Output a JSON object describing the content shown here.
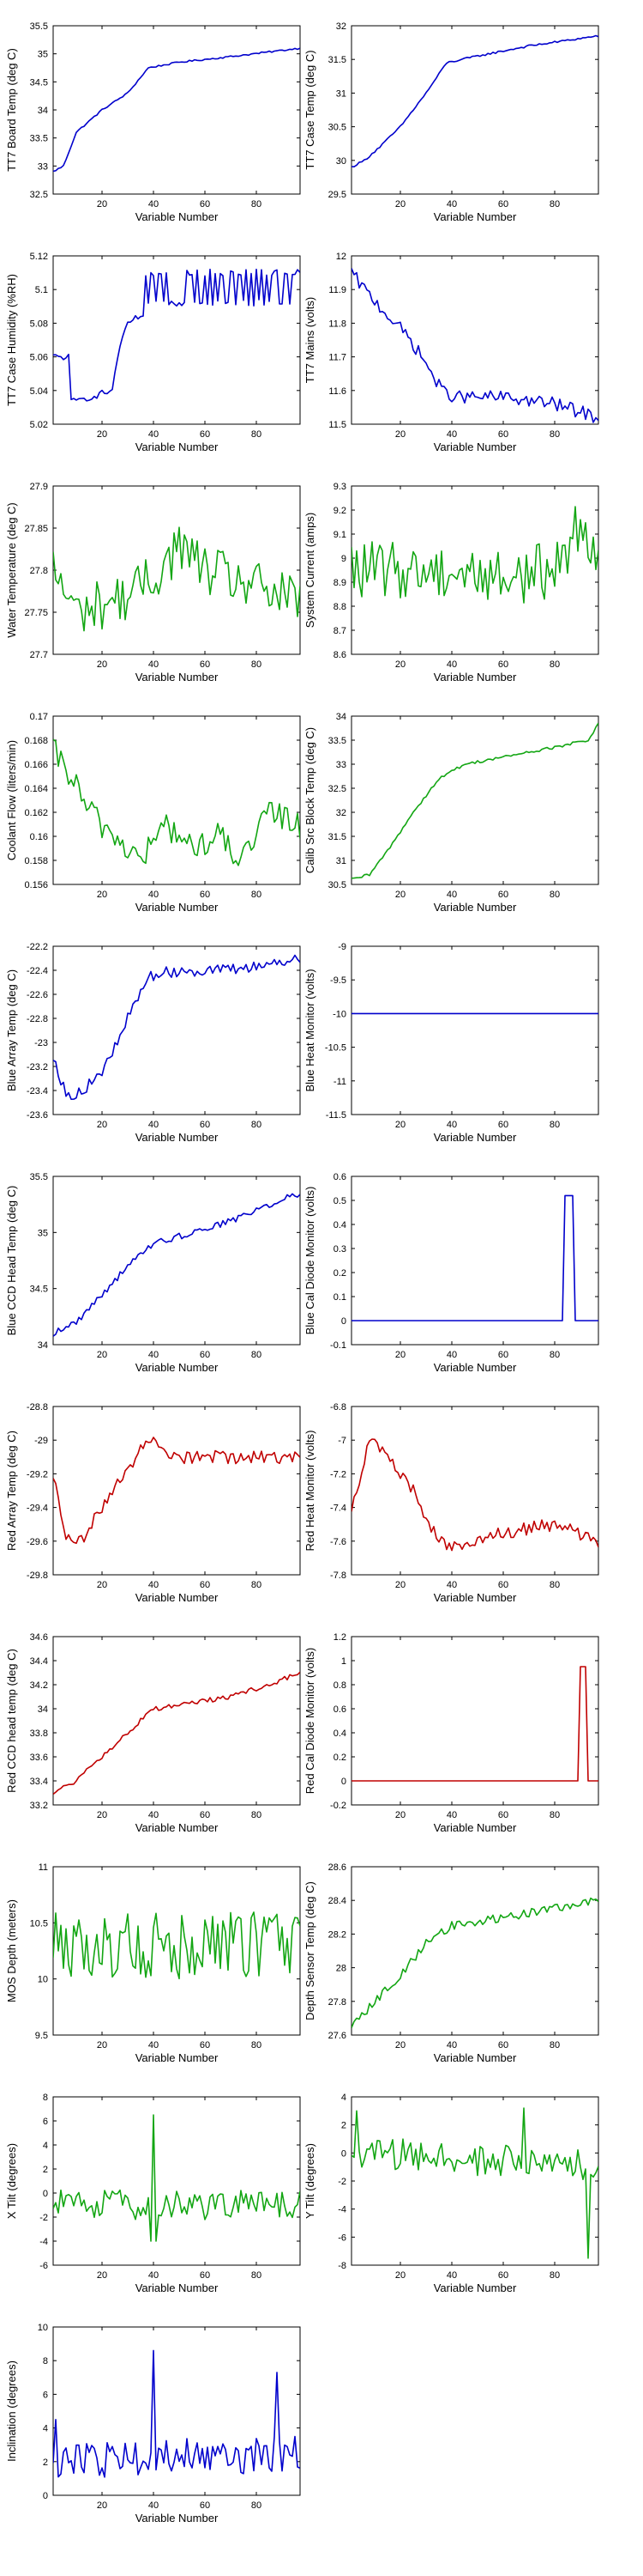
{
  "colors": {
    "blue": "#0000cc",
    "green": "#13a613",
    "red": "#c00000"
  },
  "chart_data": [
    {
      "type": "line",
      "xlabel": "Variable Number",
      "ylabel": "TT7 Board Temp (deg C)",
      "xlim": [
        1,
        97
      ],
      "ylim": [
        32.5,
        35.5
      ],
      "yticks": [
        "32.5",
        "33",
        "33.5",
        "34",
        "34.5",
        "35",
        "35.5"
      ],
      "color": "blue",
      "anchors": [
        [
          1,
          32.9
        ],
        [
          5,
          33.0
        ],
        [
          10,
          33.6
        ],
        [
          20,
          34.0
        ],
        [
          30,
          34.3
        ],
        [
          38,
          34.75
        ],
        [
          50,
          34.85
        ],
        [
          70,
          34.95
        ],
        [
          97,
          35.1
        ]
      ],
      "noise": 0.015
    },
    {
      "type": "line",
      "xlabel": "Variable Number",
      "ylabel": "TT7 Case Temp (deg C)",
      "xlim": [
        1,
        97
      ],
      "ylim": [
        29.5,
        32
      ],
      "yticks": [
        "29.5",
        "30",
        "30.5",
        "31",
        "31.5",
        "32"
      ],
      "color": "blue",
      "anchors": [
        [
          1,
          29.9
        ],
        [
          6,
          30.0
        ],
        [
          12,
          30.2
        ],
        [
          20,
          30.5
        ],
        [
          30,
          31.0
        ],
        [
          38,
          31.45
        ],
        [
          50,
          31.55
        ],
        [
          70,
          31.7
        ],
        [
          97,
          31.85
        ]
      ],
      "noise": 0.015
    },
    {
      "type": "line",
      "xlabel": "Variable Number",
      "ylabel": "TT7 Case Humidity (%RH)",
      "xlim": [
        1,
        97
      ],
      "ylim": [
        5.02,
        5.12
      ],
      "yticks": [
        "5.02",
        "5.04",
        "5.06",
        "5.08",
        "5.1",
        "5.12"
      ],
      "color": "blue",
      "anchors": [
        [
          1,
          5.06
        ],
        [
          7,
          5.06
        ],
        [
          8,
          5.033
        ],
        [
          15,
          5.036
        ],
        [
          24,
          5.04
        ],
        [
          26,
          5.06
        ],
        [
          30,
          5.08
        ],
        [
          36,
          5.085
        ],
        [
          37,
          5.1
        ],
        [
          97,
          5.1
        ]
      ],
      "noise": 0.002,
      "flicker": [
        37,
        97,
        5.09,
        5.112
      ]
    },
    {
      "type": "line",
      "xlabel": "Variable Number",
      "ylabel": "TT7 Mains  (volts)",
      "xlim": [
        1,
        97
      ],
      "ylim": [
        11.5,
        12
      ],
      "yticks": [
        "11.5",
        "11.6",
        "11.7",
        "11.8",
        "11.9",
        "12"
      ],
      "color": "blue",
      "anchors": [
        [
          1,
          11.95
        ],
        [
          6,
          11.9
        ],
        [
          12,
          11.85
        ],
        [
          18,
          11.8
        ],
        [
          24,
          11.75
        ],
        [
          30,
          11.68
        ],
        [
          36,
          11.6
        ],
        [
          42,
          11.58
        ],
        [
          60,
          11.58
        ],
        [
          80,
          11.56
        ],
        [
          97,
          11.52
        ]
      ],
      "noise": 0.02
    },
    {
      "type": "line",
      "xlabel": "Variable Number",
      "ylabel": "Water Temperature (deg C)",
      "xlim": [
        1,
        97
      ],
      "ylim": [
        27.7,
        27.9
      ],
      "yticks": [
        "27.7",
        "27.75",
        "27.8",
        "27.85",
        "27.9"
      ],
      "color": "green",
      "anchors": [
        [
          1,
          27.8
        ],
        [
          10,
          27.75
        ],
        [
          20,
          27.76
        ],
        [
          30,
          27.77
        ],
        [
          40,
          27.79
        ],
        [
          50,
          27.83
        ],
        [
          60,
          27.8
        ],
        [
          70,
          27.79
        ],
        [
          80,
          27.78
        ],
        [
          97,
          27.76
        ]
      ],
      "noise": 0.03
    },
    {
      "type": "line",
      "xlabel": "Variable Number",
      "ylabel": "System Current (amps)",
      "xlim": [
        1,
        97
      ],
      "ylim": [
        8.6,
        9.3
      ],
      "yticks": [
        "8.6",
        "8.7",
        "8.8",
        "8.9",
        "9",
        "9.1",
        "9.2",
        "9.3"
      ],
      "color": "green",
      "anchors": [
        [
          1,
          8.95
        ],
        [
          20,
          8.95
        ],
        [
          40,
          8.95
        ],
        [
          60,
          8.92
        ],
        [
          80,
          8.95
        ],
        [
          90,
          9.15
        ],
        [
          97,
          9.05
        ]
      ],
      "noise": 0.12
    },
    {
      "type": "line",
      "xlabel": "Variable Number",
      "ylabel": "Coolant Flow (liters/min)",
      "xlim": [
        1,
        97
      ],
      "ylim": [
        0.156,
        0.17
      ],
      "yticks": [
        "0.156",
        "0.158",
        "0.16",
        "0.162",
        "0.164",
        "0.166",
        "0.168",
        "0.17"
      ],
      "color": "green",
      "anchors": [
        [
          1,
          0.167
        ],
        [
          8,
          0.165
        ],
        [
          15,
          0.162
        ],
        [
          25,
          0.16
        ],
        [
          35,
          0.158
        ],
        [
          45,
          0.161
        ],
        [
          55,
          0.159
        ],
        [
          65,
          0.16
        ],
        [
          75,
          0.158
        ],
        [
          85,
          0.162
        ],
        [
          97,
          0.161
        ]
      ],
      "noise": 0.0012
    },
    {
      "type": "line",
      "xlabel": "Variable Number",
      "ylabel": "Calib Src Block Temp (deg C)",
      "xlim": [
        1,
        97
      ],
      "ylim": [
        30.5,
        34
      ],
      "yticks": [
        "30.5",
        "31",
        "31.5",
        "32",
        "32.5",
        "33",
        "33.5",
        "34"
      ],
      "color": "green",
      "anchors": [
        [
          1,
          30.6
        ],
        [
          8,
          30.7
        ],
        [
          15,
          31.2
        ],
        [
          25,
          32.0
        ],
        [
          35,
          32.7
        ],
        [
          45,
          33.0
        ],
        [
          60,
          33.15
        ],
        [
          80,
          33.35
        ],
        [
          93,
          33.5
        ],
        [
          97,
          33.85
        ]
      ],
      "noise": 0.03
    },
    {
      "type": "line",
      "xlabel": "Variable Number",
      "ylabel": "Blue Array Temp (deg C)",
      "xlim": [
        1,
        97
      ],
      "ylim": [
        -23.6,
        -22.2
      ],
      "yticks": [
        "-23.6",
        "-23.4",
        "-23.2",
        "-23",
        "-22.8",
        "-22.6",
        "-22.4",
        "-22.2"
      ],
      "color": "blue",
      "anchors": [
        [
          1,
          -23.1
        ],
        [
          6,
          -23.45
        ],
        [
          12,
          -23.4
        ],
        [
          18,
          -23.3
        ],
        [
          24,
          -23.1
        ],
        [
          30,
          -22.8
        ],
        [
          38,
          -22.45
        ],
        [
          50,
          -22.4
        ],
        [
          70,
          -22.4
        ],
        [
          97,
          -22.3
        ]
      ],
      "noise": 0.05
    },
    {
      "type": "line",
      "xlabel": "Variable Number",
      "ylabel": "Blue Heat Monitor (volts)",
      "xlim": [
        1,
        97
      ],
      "ylim": [
        -11.5,
        -9
      ],
      "yticks": [
        "-11.5",
        "-11",
        "-10.5",
        "-10",
        "-9.5",
        "-9"
      ],
      "color": "blue",
      "anchors": [
        [
          1,
          -10
        ],
        [
          97,
          -10
        ]
      ],
      "noise": 0
    },
    {
      "type": "line",
      "xlabel": "Variable Number",
      "ylabel": "Blue CCD Head Temp (deg C)",
      "xlim": [
        1,
        97
      ],
      "ylim": [
        34,
        35.5
      ],
      "yticks": [
        "34",
        "34.5",
        "35",
        "35.5"
      ],
      "color": "blue",
      "anchors": [
        [
          1,
          34.1
        ],
        [
          10,
          34.2
        ],
        [
          20,
          34.45
        ],
        [
          30,
          34.7
        ],
        [
          40,
          34.9
        ],
        [
          55,
          35.0
        ],
        [
          70,
          35.1
        ],
        [
          85,
          35.25
        ],
        [
          97,
          35.35
        ]
      ],
      "noise": 0.03
    },
    {
      "type": "line",
      "xlabel": "Variable Number",
      "ylabel": "Blue Cal Diode Monitor (volts)",
      "xlim": [
        1,
        97
      ],
      "ylim": [
        -0.1,
        0.6
      ],
      "yticks": [
        "-0.1",
        "0",
        "0.1",
        "0.2",
        "0.3",
        "0.4",
        "0.5",
        "0.6"
      ],
      "color": "blue",
      "anchors": [
        [
          1,
          0
        ],
        [
          83,
          0
        ],
        [
          84,
          0.52
        ],
        [
          87,
          0.52
        ],
        [
          88,
          0
        ],
        [
          97,
          0
        ]
      ],
      "noise": 0
    },
    {
      "type": "line",
      "xlabel": "Variable Number",
      "ylabel": "Red Array Temp (deg C)",
      "xlim": [
        1,
        97
      ],
      "ylim": [
        -29.8,
        -28.8
      ],
      "yticks": [
        "-29.8",
        "-29.6",
        "-29.4",
        "-29.2",
        "-29",
        "-28.8"
      ],
      "color": "red",
      "anchors": [
        [
          1,
          -29.2
        ],
        [
          6,
          -29.6
        ],
        [
          12,
          -29.6
        ],
        [
          20,
          -29.4
        ],
        [
          28,
          -29.2
        ],
        [
          38,
          -29.0
        ],
        [
          50,
          -29.1
        ],
        [
          70,
          -29.1
        ],
        [
          97,
          -29.1
        ]
      ],
      "noise": 0.04
    },
    {
      "type": "line",
      "xlabel": "Variable Number",
      "ylabel": "Red Heat Monitor (volts)",
      "xlim": [
        1,
        97
      ],
      "ylim": [
        -7.8,
        -6.8
      ],
      "yticks": [
        "-7.8",
        "-7.6",
        "-7.4",
        "-7.2",
        "-7",
        "-6.8"
      ],
      "color": "red",
      "anchors": [
        [
          1,
          -7.4
        ],
        [
          8,
          -7.0
        ],
        [
          15,
          -7.1
        ],
        [
          25,
          -7.3
        ],
        [
          35,
          -7.6
        ],
        [
          45,
          -7.65
        ],
        [
          60,
          -7.55
        ],
        [
          80,
          -7.5
        ],
        [
          97,
          -7.6
        ]
      ],
      "noise": 0.04
    },
    {
      "type": "line",
      "xlabel": "Variable Number",
      "ylabel": "Red CCD head temp (deg C)",
      "xlim": [
        1,
        97
      ],
      "ylim": [
        33.2,
        34.6
      ],
      "yticks": [
        "33.2",
        "33.4",
        "33.6",
        "33.8",
        "34",
        "34.2",
        "34.4",
        "34.6"
      ],
      "color": "red",
      "anchors": [
        [
          1,
          33.3
        ],
        [
          10,
          33.4
        ],
        [
          20,
          33.6
        ],
        [
          30,
          33.8
        ],
        [
          40,
          34.0
        ],
        [
          55,
          34.05
        ],
        [
          70,
          34.1
        ],
        [
          85,
          34.2
        ],
        [
          97,
          34.3
        ]
      ],
      "noise": 0.02
    },
    {
      "type": "line",
      "xlabel": "Variable Number",
      "ylabel": "Red Cal Diode Monitor (volts)",
      "xlim": [
        1,
        97
      ],
      "ylim": [
        -0.2,
        1.2
      ],
      "yticks": [
        "-0.2",
        "0",
        "0.2",
        "0.4",
        "0.6",
        "0.8",
        "1",
        "1.2"
      ],
      "color": "red",
      "anchors": [
        [
          1,
          0
        ],
        [
          89,
          0
        ],
        [
          90,
          0.95
        ],
        [
          92,
          0.95
        ],
        [
          93,
          0
        ],
        [
          97,
          0
        ]
      ],
      "noise": 0
    },
    {
      "type": "line",
      "xlabel": "Variable Number",
      "ylabel": "MOS Depth  (meters)",
      "xlim": [
        1,
        97
      ],
      "ylim": [
        9.5,
        11
      ],
      "yticks": [
        "9.5",
        "10",
        "10.5",
        "11"
      ],
      "color": "green",
      "anchors": [
        [
          1,
          10.3
        ],
        [
          97,
          10.3
        ]
      ],
      "noise": 0.3
    },
    {
      "type": "line",
      "xlabel": "Variable Number",
      "ylabel": "Depth Sensor Temp (deg C)",
      "xlim": [
        1,
        97
      ],
      "ylim": [
        27.6,
        28.6
      ],
      "yticks": [
        "27.6",
        "27.8",
        "28",
        "28.2",
        "28.4",
        "28.6"
      ],
      "color": "green",
      "anchors": [
        [
          1,
          27.65
        ],
        [
          10,
          27.8
        ],
        [
          20,
          27.95
        ],
        [
          30,
          28.15
        ],
        [
          40,
          28.25
        ],
        [
          60,
          28.3
        ],
        [
          80,
          28.35
        ],
        [
          97,
          28.4
        ]
      ],
      "noise": 0.025
    },
    {
      "type": "line",
      "xlabel": "Variable Number",
      "ylabel": "X Tilt  (degrees)",
      "xlim": [
        1,
        97
      ],
      "ylim": [
        -6,
        8
      ],
      "yticks": [
        "-6",
        "-4",
        "-2",
        "0",
        "2",
        "4",
        "6",
        "8"
      ],
      "color": "green",
      "anchors": [
        [
          1,
          -1
        ],
        [
          97,
          -1
        ]
      ],
      "noise": 1.3,
      "spikes": [
        [
          40,
          6.5
        ],
        [
          39,
          -4
        ],
        [
          41,
          -4
        ]
      ]
    },
    {
      "type": "line",
      "xlabel": "Variable Number",
      "ylabel": "Y Tilt  (degrees)",
      "xlim": [
        1,
        97
      ],
      "ylim": [
        -8,
        4
      ],
      "yticks": [
        "-8",
        "-6",
        "-4",
        "-2",
        "0",
        "2",
        "4"
      ],
      "color": "green",
      "anchors": [
        [
          1,
          0
        ],
        [
          97,
          -1
        ]
      ],
      "noise": 1.2,
      "spikes": [
        [
          3,
          3
        ],
        [
          68,
          3.2
        ],
        [
          93,
          -7.5
        ]
      ]
    },
    {
      "type": "line",
      "xlabel": "Variable Number",
      "ylabel": "Inclination  (degrees)",
      "xlim": [
        1,
        97
      ],
      "ylim": [
        0,
        10
      ],
      "yticks": [
        "0",
        "2",
        "4",
        "6",
        "8",
        "10"
      ],
      "color": "blue",
      "anchors": [
        [
          1,
          2
        ],
        [
          97,
          2.5
        ]
      ],
      "noise": 1.1,
      "spikes": [
        [
          40,
          8.6
        ],
        [
          88,
          7.3
        ],
        [
          2,
          4.5
        ]
      ]
    }
  ],
  "xticks": [
    "20",
    "40",
    "60",
    "80"
  ]
}
